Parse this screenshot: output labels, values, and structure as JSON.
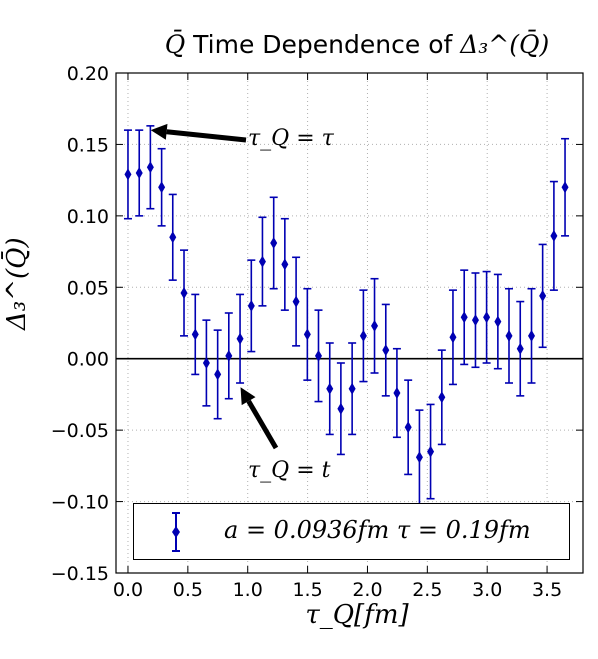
{
  "chart_data": {
    "type": "scatter",
    "title": "Q̄ Time Dependence of Δ₃^(Q̄)",
    "title_parts": {
      "prefix": "Q̄",
      "middle": " Time Dependence of ",
      "suffix": "Δ₃^(Q̄)"
    },
    "xlabel": "τ_Q[fm]",
    "ylabel": "Δ₃^(Q̄)",
    "xlim": [
      -0.1,
      3.8
    ],
    "ylim": [
      -0.15,
      0.2
    ],
    "xticks": [
      "0.0",
      "0.5",
      "1.0",
      "1.5",
      "2.0",
      "2.5",
      "3.0",
      "3.5"
    ],
    "xtick_values": [
      0.0,
      0.5,
      1.0,
      1.5,
      2.0,
      2.5,
      3.0,
      3.5
    ],
    "yticks": [
      "0.20",
      "0.15",
      "0.10",
      "0.05",
      "0.00",
      "−0.05",
      "−0.10",
      "−0.15"
    ],
    "ytick_values": [
      0.2,
      0.15,
      0.1,
      0.05,
      0.0,
      -0.05,
      -0.1,
      -0.15
    ],
    "grid": true,
    "zero_line": true,
    "legend_placement": "lower-center",
    "series": [
      {
        "name": "a = 0.0936fm  τ = 0.19fm",
        "color": "#0000b3",
        "marker": "diamond",
        "x": [
          0.0,
          0.094,
          0.187,
          0.281,
          0.374,
          0.468,
          0.562,
          0.655,
          0.749,
          0.842,
          0.936,
          1.03,
          1.123,
          1.217,
          1.31,
          1.404,
          1.498,
          1.591,
          1.685,
          1.778,
          1.872,
          1.966,
          2.059,
          2.153,
          2.246,
          2.34,
          2.434,
          2.527,
          2.621,
          2.714,
          2.808,
          2.902,
          2.995,
          3.089,
          3.182,
          3.276,
          3.37,
          3.463,
          3.557,
          3.65
        ],
        "y": [
          0.129,
          0.13,
          0.134,
          0.12,
          0.085,
          0.046,
          0.017,
          -0.003,
          -0.011,
          0.002,
          0.014,
          0.037,
          0.068,
          0.081,
          0.066,
          0.04,
          0.017,
          0.002,
          -0.021,
          -0.035,
          -0.021,
          0.016,
          0.023,
          0.006,
          -0.024,
          -0.048,
          -0.069,
          -0.065,
          -0.027,
          0.015,
          0.029,
          0.027,
          0.029,
          0.026,
          0.016,
          0.007,
          0.016,
          0.044,
          0.086,
          0.12
        ],
        "yerr": [
          0.031,
          0.03,
          0.029,
          0.027,
          0.03,
          0.03,
          0.028,
          0.03,
          0.031,
          0.03,
          0.031,
          0.032,
          0.031,
          0.032,
          0.032,
          0.031,
          0.032,
          0.032,
          0.032,
          0.032,
          0.032,
          0.032,
          0.033,
          0.032,
          0.031,
          0.033,
          0.033,
          0.033,
          0.033,
          0.033,
          0.033,
          0.033,
          0.032,
          0.033,
          0.033,
          0.033,
          0.033,
          0.036,
          0.038,
          0.034
        ]
      }
    ],
    "annotations": [
      {
        "text": "τ_Q = τ",
        "points_to": [
          0.19,
          0.16
        ]
      },
      {
        "text": "τ_Q = t",
        "points_to": [
          0.94,
          -0.02
        ]
      }
    ]
  }
}
